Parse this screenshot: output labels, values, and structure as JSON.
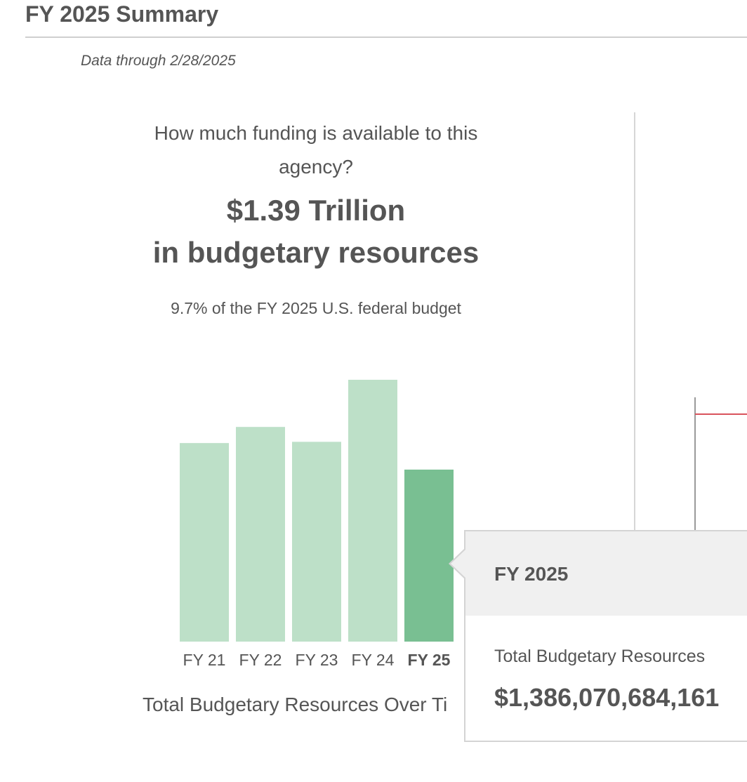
{
  "header": {
    "title": "FY 2025 Summary",
    "data_through": "Data through 2/28/2025"
  },
  "summary": {
    "question": "How much funding is available to this agency?",
    "amount_line": "$1.39 Trillion",
    "amount_suffix": "in budgetary resources",
    "percent_text": "9.7% of the FY 2025 U.S. federal budget"
  },
  "chart_data": {
    "type": "bar",
    "title": "Total Budgetary Resources Over Ti",
    "categories": [
      "FY 21",
      "FY 22",
      "FY 23",
      "FY 24",
      "FY 25"
    ],
    "values": [
      1.6,
      1.73,
      1.61,
      2.11,
      1.386
    ],
    "highlight_index": 4,
    "ylim": [
      0,
      2.11
    ],
    "colors": {
      "bar": "#bde0c8",
      "bar_highlight": "#79bf92"
    }
  },
  "tooltip": {
    "title": "FY 2025",
    "label": "Total Budgetary Resources",
    "value": "$1,386,070,684,161"
  },
  "colors": {
    "text": "#555555",
    "rule": "#cfcfcf",
    "accent_red": "#d9535c"
  }
}
